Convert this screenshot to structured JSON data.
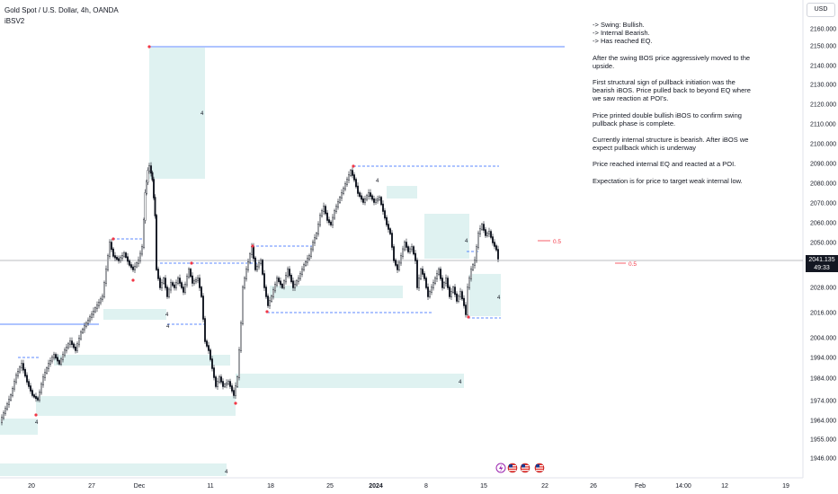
{
  "header": {
    "title": "Gold Spot / U.S. Dollar, 4h, OANDA",
    "indicator": "iBSV2"
  },
  "currency_button": "USD",
  "price_tag": {
    "price": "2041.135",
    "countdown": "49:33"
  },
  "notes": [
    "-> Swing: Bullish.\n-> Internal Bearish.\n-> Has reached EQ.",
    "After the swing BOS price aggressively moved to the upside.",
    "First structural sign of pullback initiation was the bearish iBOS.  Price pulled back to beyond EQ where we saw reaction at POI's.",
    "Price printed double bullish iBOS to confirm swing pullback phase is complete.",
    "Currently internal structure is bearish.  After iBOS we expect pullback which is underway",
    "Price reached internal EQ and reacted at a POI.",
    "Expectation is for price to target weak internal low."
  ],
  "eq_labels": [
    "0.5",
    "0.5"
  ],
  "block_marker": "4",
  "colors": {
    "zone": "#dff2f1",
    "up": "#131722",
    "down": "#131722",
    "level_line": "#2962ff",
    "pivot": "#f23645",
    "eq": "#f23645"
  },
  "y_axis": [
    "2160.000",
    "2150.000",
    "2140.000",
    "2130.000",
    "2120.000",
    "2110.000",
    "2100.000",
    "2090.000",
    "2080.000",
    "2070.000",
    "2060.000",
    "2050.000",
    "2028.000",
    "2016.000",
    "2004.000",
    "1994.000",
    "1984.000",
    "1974.000",
    "1964.000",
    "1955.000",
    "1946.000"
  ],
  "x_axis": [
    {
      "label": "20",
      "bold": false
    },
    {
      "label": "27",
      "bold": false
    },
    {
      "label": "Dec",
      "bold": false
    },
    {
      "label": "11",
      "bold": false
    },
    {
      "label": "18",
      "bold": false
    },
    {
      "label": "25",
      "bold": false
    },
    {
      "label": "2024",
      "bold": true
    },
    {
      "label": "8",
      "bold": false
    },
    {
      "label": "15",
      "bold": false
    },
    {
      "label": "22",
      "bold": false
    },
    {
      "label": "26",
      "bold": false
    },
    {
      "label": "Feb",
      "bold": false
    },
    {
      "label": "14:00",
      "bold": false
    },
    {
      "label": "12",
      "bold": false
    },
    {
      "label": "19",
      "bold": false
    }
  ],
  "event_icons": [
    "lightning-icon",
    "us-flag-icon",
    "us-flag-icon",
    "us-flag-icon"
  ]
}
